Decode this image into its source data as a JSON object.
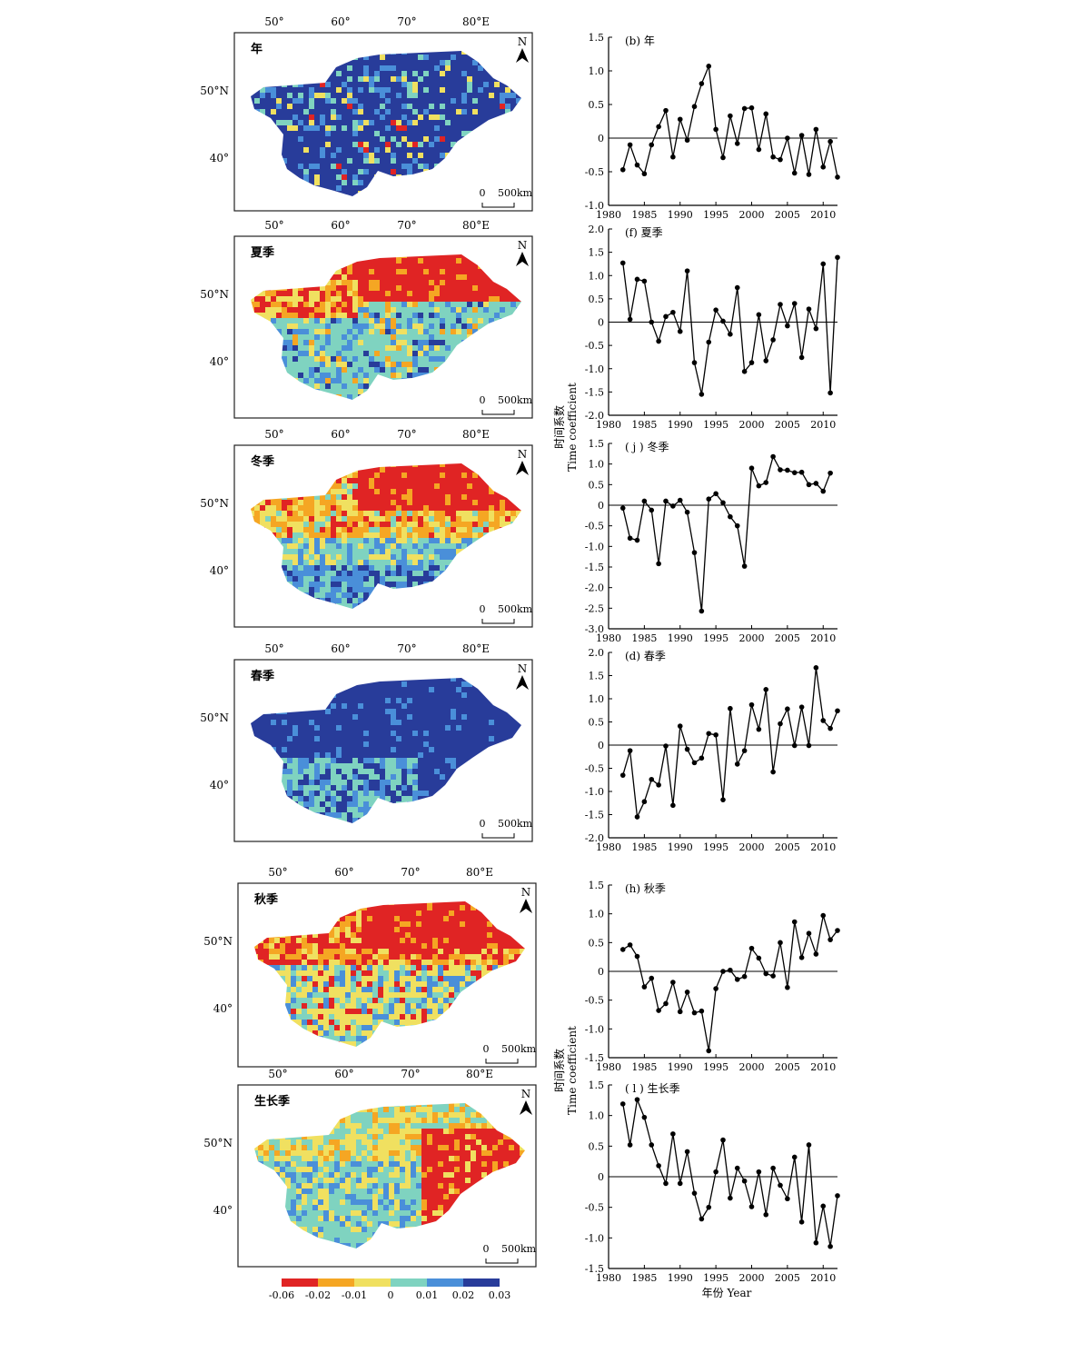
{
  "colors": {
    "red": "#e02424",
    "orange": "#f5a623",
    "yellow": "#f0e060",
    "teal": "#7fd3c0",
    "blue": "#4a8fd9",
    "navy": "#283c9a"
  },
  "north_symbol": "N",
  "scale_bar": {
    "zero": "0",
    "distance": "500km"
  },
  "map_ticks": {
    "lon": [
      "50°",
      "60°",
      "70°",
      "80°E"
    ],
    "lat": [
      "50°N",
      "40°"
    ]
  },
  "maps": [
    {
      "label": "年",
      "dominant": "navy"
    },
    {
      "label": "夏季",
      "dominant": "teal"
    },
    {
      "label": "冬季",
      "dominant": "yellow"
    },
    {
      "label": "春季",
      "dominant": "navy"
    },
    {
      "label": "秋季",
      "dominant": "yellow"
    },
    {
      "label": "生长季",
      "dominant": "teal"
    }
  ],
  "legend": {
    "labels": [
      "-0.06",
      "-0.02",
      "-0.01",
      "0",
      "0.01",
      "0.02",
      "0.03"
    ],
    "colors": [
      "#e02424",
      "#f5a623",
      "#f0e060",
      "#7fd3c0",
      "#4a8fd9",
      "#283c9a"
    ]
  },
  "axis_titles": {
    "y_cn": "时间系数",
    "y_en": "Time coefficient",
    "x": "年份  Year"
  },
  "chart_data": [
    {
      "type": "line",
      "title": "(b) 年",
      "x": [
        1982,
        1983,
        1984,
        1985,
        1986,
        1987,
        1988,
        1989,
        1990,
        1991,
        1992,
        1993,
        1994,
        1995,
        1996,
        1997,
        1998,
        1999,
        2000,
        2001,
        2002,
        2003,
        2004,
        2005,
        2006,
        2007,
        2008,
        2009,
        2010,
        2011,
        2012
      ],
      "values": [
        -0.47,
        -0.1,
        -0.4,
        -0.53,
        -0.1,
        0.17,
        0.41,
        -0.28,
        0.28,
        -0.03,
        0.47,
        0.81,
        1.07,
        0.13,
        -0.29,
        0.33,
        -0.08,
        0.44,
        0.45,
        -0.17,
        0.36,
        -0.28,
        -0.32,
        0.0,
        -0.52,
        0.04,
        -0.54,
        0.13,
        -0.43,
        -0.05,
        -0.58
      ],
      "xlim": [
        1980,
        2012
      ],
      "ylim": [
        -1.0,
        1.5
      ],
      "yticks": [
        "1.5",
        "1.0",
        "0.5",
        "0",
        "-0.5",
        "-1.0"
      ],
      "xticks": [
        "1980",
        "1985",
        "1990",
        "1995",
        "2000",
        "2005",
        "2010"
      ]
    },
    {
      "type": "line",
      "title": "(f) 夏季",
      "x": [
        1982,
        1983,
        1984,
        1985,
        1986,
        1987,
        1988,
        1989,
        1990,
        1991,
        1992,
        1993,
        1994,
        1995,
        1996,
        1997,
        1998,
        1999,
        2000,
        2001,
        2002,
        2003,
        2004,
        2005,
        2006,
        2007,
        2008,
        2009,
        2010,
        2011,
        2012
      ],
      "values": [
        1.27,
        0.06,
        0.92,
        0.88,
        0.0,
        -0.41,
        0.12,
        0.21,
        -0.2,
        1.1,
        -0.87,
        -1.55,
        -0.43,
        0.26,
        0.02,
        -0.26,
        0.74,
        -1.06,
        -0.87,
        0.16,
        -0.83,
        -0.38,
        0.38,
        -0.08,
        0.4,
        -0.76,
        0.28,
        -0.14,
        1.25,
        -1.52,
        1.39
      ],
      "xlim": [
        1980,
        2012
      ],
      "ylim": [
        -2.0,
        2.0
      ],
      "yticks": [
        "2.0",
        "1.5",
        "1.0",
        "0.5",
        "0",
        "-0.5",
        "-1.0",
        "-1.5",
        "-2.0"
      ],
      "xticks": [
        "1980",
        "1985",
        "1990",
        "1995",
        "2000",
        "2005",
        "2010"
      ]
    },
    {
      "type": "line",
      "title": "( j ) 冬季",
      "x": [
        1982,
        1983,
        1984,
        1985,
        1986,
        1987,
        1988,
        1989,
        1990,
        1991,
        1992,
        1993,
        1994,
        1995,
        1996,
        1997,
        1998,
        1999,
        2000,
        2001,
        2002,
        2003,
        2004,
        2005,
        2006,
        2007,
        2008,
        2009,
        2010,
        2011
      ],
      "values": [
        -0.07,
        -0.8,
        -0.85,
        0.1,
        -0.12,
        -1.42,
        0.1,
        -0.02,
        0.12,
        -0.17,
        -1.15,
        -2.57,
        0.15,
        0.28,
        0.06,
        -0.28,
        -0.5,
        -1.48,
        0.9,
        0.47,
        0.55,
        1.18,
        0.86,
        0.85,
        0.79,
        0.8,
        0.5,
        0.53,
        0.34,
        0.78
      ],
      "xlim": [
        1980,
        2012
      ],
      "ylim": [
        -3.0,
        1.5
      ],
      "yticks": [
        "1.5",
        "1.0",
        "0.5",
        "0",
        "-0.5",
        "-1.0",
        "-1.5",
        "-2.0",
        "-2.5",
        "-3.0"
      ],
      "xticks": [
        "1980",
        "1985",
        "1990",
        "1995",
        "2000",
        "2005",
        "2010"
      ]
    },
    {
      "type": "line",
      "title": "(d) 春季",
      "x": [
        1982,
        1983,
        1984,
        1985,
        1986,
        1987,
        1988,
        1989,
        1990,
        1991,
        1992,
        1993,
        1994,
        1995,
        1996,
        1997,
        1998,
        1999,
        2000,
        2001,
        2002,
        2003,
        2004,
        2005,
        2006,
        2007,
        2008,
        2009,
        2010,
        2011,
        2012
      ],
      "values": [
        -0.65,
        -0.12,
        -1.55,
        -1.22,
        -0.74,
        -0.86,
        -0.02,
        -1.3,
        0.41,
        -0.09,
        -0.38,
        -0.28,
        0.25,
        0.22,
        -1.18,
        0.79,
        -0.41,
        -0.12,
        0.87,
        0.34,
        1.2,
        -0.58,
        0.46,
        0.78,
        -0.01,
        0.82,
        -0.01,
        1.67,
        0.53,
        0.36,
        0.74
      ],
      "xlim": [
        1980,
        2012
      ],
      "ylim": [
        -2.0,
        2.0
      ],
      "yticks": [
        "2.0",
        "1.5",
        "1.0",
        "0.5",
        "0",
        "-0.5",
        "-1.0",
        "-1.5",
        "-2.0"
      ],
      "xticks": [
        "1980",
        "1985",
        "1990",
        "1995",
        "2000",
        "2005",
        "2010"
      ]
    },
    {
      "type": "line",
      "title": "(h) 秋季",
      "x": [
        1982,
        1983,
        1984,
        1985,
        1986,
        1987,
        1988,
        1989,
        1990,
        1991,
        1992,
        1993,
        1994,
        1995,
        1996,
        1997,
        1998,
        1999,
        2000,
        2001,
        2002,
        2003,
        2004,
        2005,
        2006,
        2007,
        2008,
        2009,
        2010,
        2011,
        2012
      ],
      "values": [
        0.38,
        0.46,
        0.26,
        -0.27,
        -0.12,
        -0.68,
        -0.56,
        -0.19,
        -0.7,
        -0.36,
        -0.72,
        -0.69,
        -1.38,
        -0.3,
        0.0,
        0.02,
        -0.14,
        -0.09,
        0.4,
        0.23,
        -0.04,
        -0.08,
        0.5,
        -0.28,
        0.86,
        0.24,
        0.66,
        0.3,
        0.97,
        0.55,
        0.71
      ],
      "xlim": [
        1980,
        2012
      ],
      "ylim": [
        -1.5,
        1.5
      ],
      "yticks": [
        "1.5",
        "1.0",
        "0.5",
        "0",
        "-0.5",
        "-1.0",
        "-1.5"
      ],
      "xticks": [
        "1980",
        "1985",
        "1990",
        "1995",
        "2000",
        "2005",
        "2010"
      ]
    },
    {
      "type": "line",
      "title": "( l ) 生长季",
      "x": [
        1982,
        1983,
        1984,
        1985,
        1986,
        1987,
        1988,
        1989,
        1990,
        1991,
        1992,
        1993,
        1994,
        1995,
        1996,
        1997,
        1998,
        1999,
        2000,
        2001,
        2002,
        2003,
        2004,
        2005,
        2006,
        2007,
        2008,
        2009,
        2010,
        2011,
        2012
      ],
      "values": [
        1.19,
        0.52,
        1.26,
        0.97,
        0.52,
        0.18,
        -0.11,
        0.7,
        -0.11,
        0.41,
        -0.27,
        -0.69,
        -0.5,
        0.08,
        0.6,
        -0.35,
        0.14,
        -0.07,
        -0.49,
        0.08,
        -0.62,
        0.14,
        -0.14,
        -0.36,
        0.32,
        -0.74,
        0.52,
        -1.08,
        -0.48,
        -1.14,
        -0.31
      ],
      "xlim": [
        1980,
        2012
      ],
      "ylim": [
        -1.5,
        1.5
      ],
      "yticks": [
        "1.5",
        "1.0",
        "0.5",
        "0",
        "-0.5",
        "-1.0",
        "-1.5"
      ],
      "xticks": [
        "1980",
        "1985",
        "1990",
        "1995",
        "2000",
        "2005",
        "2010"
      ]
    }
  ]
}
